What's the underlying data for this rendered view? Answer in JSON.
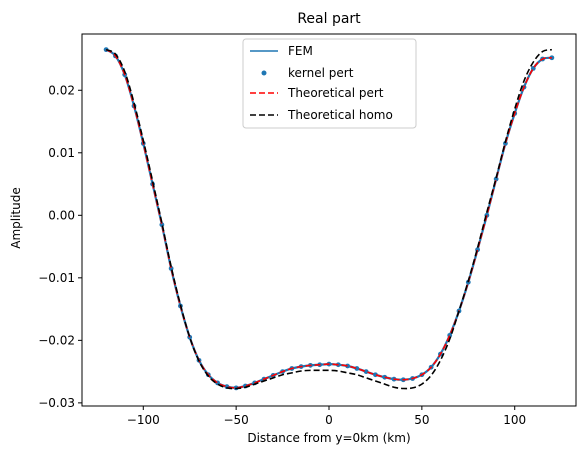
{
  "chart_data": {
    "type": "line",
    "title": "Real part",
    "xlabel": "Distance from y=0km (km)",
    "ylabel": "Amplitude",
    "xlim": [
      -133,
      133
    ],
    "ylim": [
      -0.0305,
      0.029
    ],
    "xticks": [
      -100,
      -50,
      0,
      50,
      100
    ],
    "xtick_labels": [
      "−100",
      "−50",
      "0",
      "50",
      "100"
    ],
    "yticks": [
      -0.03,
      -0.02,
      -0.01,
      0.0,
      0.01,
      0.02
    ],
    "ytick_labels": [
      "−0.03",
      "−0.02",
      "−0.01",
      "0.00",
      "0.01",
      "0.02"
    ],
    "grid": false,
    "legend_position": "top-center",
    "series": [
      {
        "name": "FEM",
        "style": "solid",
        "color": "#1f77b4",
        "x": [
          -120,
          -115,
          -110,
          -105,
          -100,
          -95,
          -90,
          -85,
          -80,
          -75,
          -70,
          -65,
          -60,
          -55,
          -50,
          -45,
          -40,
          -35,
          -30,
          -25,
          -20,
          -15,
          -10,
          -5,
          0,
          5,
          10,
          15,
          20,
          25,
          30,
          35,
          40,
          45,
          50,
          55,
          60,
          65,
          70,
          75,
          80,
          85,
          90,
          95,
          100,
          105,
          110,
          115,
          120
        ],
        "y": [
          0.0265,
          0.0255,
          0.0225,
          0.0175,
          0.0115,
          0.005,
          -0.0015,
          -0.0085,
          -0.0145,
          -0.0195,
          -0.0232,
          -0.0255,
          -0.0268,
          -0.0274,
          -0.0276,
          -0.0273,
          -0.0268,
          -0.0262,
          -0.0256,
          -0.025,
          -0.0245,
          -0.0242,
          -0.024,
          -0.0239,
          -0.0238,
          -0.0239,
          -0.0241,
          -0.0245,
          -0.025,
          -0.0255,
          -0.0259,
          -0.0262,
          -0.0263,
          -0.0261,
          -0.0255,
          -0.0243,
          -0.0222,
          -0.0192,
          -0.0153,
          -0.0107,
          -0.0055,
          0.0,
          0.0058,
          0.0115,
          0.0163,
          0.0205,
          0.0235,
          0.025,
          0.0252
        ]
      },
      {
        "name": "kernel pert",
        "style": "points",
        "color": "#1f77b4",
        "x": [
          -120,
          -115,
          -110,
          -105,
          -100,
          -95,
          -90,
          -85,
          -80,
          -75,
          -70,
          -65,
          -60,
          -55,
          -50,
          -45,
          -40,
          -35,
          -30,
          -25,
          -20,
          -15,
          -10,
          -5,
          0,
          5,
          10,
          15,
          20,
          25,
          30,
          35,
          40,
          45,
          50,
          55,
          60,
          65,
          70,
          75,
          80,
          85,
          90,
          95,
          100,
          105,
          110,
          115,
          120
        ],
        "y": [
          0.0265,
          0.0255,
          0.0225,
          0.0175,
          0.0115,
          0.005,
          -0.0015,
          -0.0085,
          -0.0145,
          -0.0195,
          -0.0232,
          -0.0255,
          -0.0268,
          -0.0274,
          -0.0276,
          -0.0273,
          -0.0268,
          -0.0262,
          -0.0256,
          -0.025,
          -0.0245,
          -0.0242,
          -0.024,
          -0.0239,
          -0.0238,
          -0.0239,
          -0.0241,
          -0.0245,
          -0.025,
          -0.0255,
          -0.0259,
          -0.0262,
          -0.0263,
          -0.0261,
          -0.0255,
          -0.0243,
          -0.0222,
          -0.0192,
          -0.0153,
          -0.0107,
          -0.0055,
          0.0,
          0.0058,
          0.0115,
          0.0163,
          0.0205,
          0.0235,
          0.025,
          0.0252
        ]
      },
      {
        "name": "Theoretical pert",
        "style": "dashed",
        "color": "#ff0000",
        "x": [
          -120,
          -115,
          -110,
          -105,
          -100,
          -95,
          -90,
          -85,
          -80,
          -75,
          -70,
          -65,
          -60,
          -55,
          -50,
          -45,
          -40,
          -35,
          -30,
          -25,
          -20,
          -15,
          -10,
          -5,
          0,
          5,
          10,
          15,
          20,
          25,
          30,
          35,
          40,
          45,
          50,
          55,
          60,
          65,
          70,
          75,
          80,
          85,
          90,
          95,
          100,
          105,
          110,
          115,
          120
        ],
        "y": [
          0.0265,
          0.0255,
          0.0225,
          0.0175,
          0.0115,
          0.005,
          -0.0015,
          -0.0085,
          -0.0145,
          -0.0195,
          -0.0232,
          -0.0255,
          -0.0268,
          -0.0274,
          -0.0276,
          -0.0273,
          -0.0268,
          -0.0262,
          -0.0256,
          -0.025,
          -0.0245,
          -0.0242,
          -0.024,
          -0.0239,
          -0.0238,
          -0.0239,
          -0.0241,
          -0.0245,
          -0.025,
          -0.0255,
          -0.0259,
          -0.0262,
          -0.0263,
          -0.0261,
          -0.0255,
          -0.0243,
          -0.0222,
          -0.0192,
          -0.0153,
          -0.0107,
          -0.0055,
          0.0,
          0.0058,
          0.0115,
          0.0163,
          0.0205,
          0.0235,
          0.025,
          0.0252
        ]
      },
      {
        "name": "Theoretical homo",
        "style": "dashed",
        "color": "#000000",
        "x": [
          -120,
          -115,
          -110,
          -105,
          -100,
          -95,
          -90,
          -85,
          -80,
          -75,
          -70,
          -65,
          -60,
          -55,
          -50,
          -45,
          -40,
          -35,
          -30,
          -25,
          -20,
          -15,
          -10,
          -5,
          0,
          5,
          10,
          15,
          20,
          25,
          30,
          35,
          40,
          45,
          50,
          55,
          60,
          65,
          70,
          75,
          80,
          85,
          90,
          95,
          100,
          105,
          110,
          115,
          120
        ],
        "y": [
          0.0265,
          0.0258,
          0.023,
          0.018,
          0.012,
          0.0055,
          -0.0012,
          -0.0082,
          -0.0143,
          -0.0195,
          -0.0233,
          -0.0257,
          -0.027,
          -0.0276,
          -0.0277,
          -0.0275,
          -0.027,
          -0.0265,
          -0.026,
          -0.0255,
          -0.0252,
          -0.0249,
          -0.0248,
          -0.0248,
          -0.0248,
          -0.0249,
          -0.0252,
          -0.0255,
          -0.026,
          -0.0265,
          -0.027,
          -0.0275,
          -0.0277,
          -0.0276,
          -0.027,
          -0.0256,
          -0.0232,
          -0.0198,
          -0.0153,
          -0.0105,
          -0.0052,
          0.0005,
          0.006,
          0.0118,
          0.017,
          0.0215,
          0.0245,
          0.0262,
          0.0265
        ]
      }
    ]
  }
}
